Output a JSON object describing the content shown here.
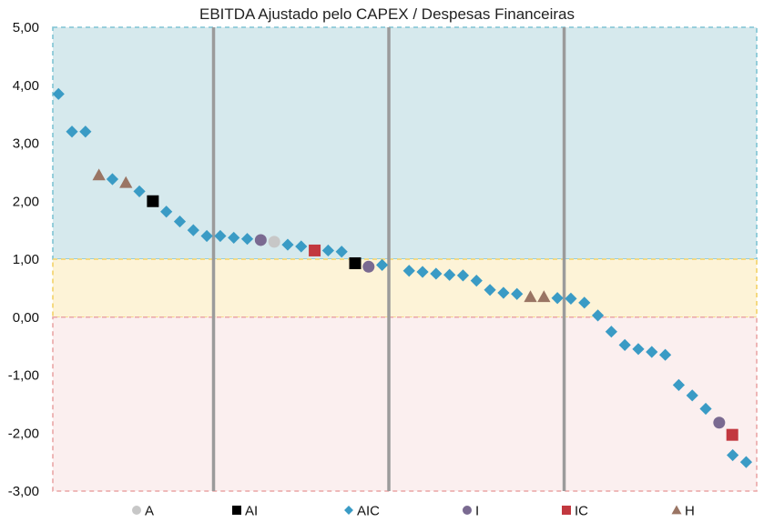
{
  "chart_data": {
    "type": "scatter",
    "title": "EBITDA Ajustado pelo CAPEX / Despesas Financeiras",
    "xlabel": "",
    "ylabel": "",
    "ylim": [
      -3,
      5
    ],
    "yticks": [
      "5,00",
      "4,00",
      "3,00",
      "2,00",
      "1,00",
      "0,00",
      "-1,00",
      "-2,00",
      "-3,00"
    ],
    "x_count": 52,
    "bands": [
      {
        "from": 1,
        "to": 5,
        "color": "#d6e9ed",
        "border": "#7ec4d4"
      },
      {
        "from": 0,
        "to": 1,
        "color": "#fdf3d7",
        "border": "#f3d267"
      },
      {
        "from": -3,
        "to": 0,
        "color": "#fbefef",
        "border": "#eaa6a6"
      }
    ],
    "vertical_lines_after_index": [
      12,
      25,
      38
    ],
    "legend": [
      {
        "name": "A",
        "marker": "circle",
        "color": "#c7c7c7"
      },
      {
        "name": "AI",
        "marker": "square",
        "color": "#000000"
      },
      {
        "name": "AIC",
        "marker": "diamond",
        "color": "#3a9bc5"
      },
      {
        "name": "I",
        "marker": "circle",
        "color": "#7a6a91"
      },
      {
        "name": "IC",
        "marker": "square",
        "color": "#c2383f"
      },
      {
        "name": "H",
        "marker": "triangle",
        "color": "#9a7564"
      }
    ],
    "series": [
      {
        "name": "AIC",
        "points": [
          [
            1,
            3.85
          ],
          [
            2,
            3.2
          ],
          [
            3,
            3.2
          ],
          [
            5,
            2.38
          ],
          [
            7,
            2.17
          ],
          [
            9,
            1.82
          ],
          [
            10,
            1.65
          ],
          [
            11,
            1.5
          ],
          [
            12,
            1.4
          ],
          [
            13,
            1.4
          ],
          [
            14,
            1.37
          ],
          [
            15,
            1.35
          ],
          [
            18,
            1.25
          ],
          [
            19,
            1.22
          ],
          [
            21,
            1.15
          ],
          [
            22,
            1.13
          ],
          [
            25,
            0.9
          ],
          [
            27,
            0.8
          ],
          [
            28,
            0.78
          ],
          [
            29,
            0.75
          ],
          [
            30,
            0.73
          ],
          [
            31,
            0.72
          ],
          [
            32,
            0.63
          ],
          [
            33,
            0.47
          ],
          [
            34,
            0.42
          ],
          [
            35,
            0.4
          ],
          [
            38,
            0.33
          ],
          [
            39,
            0.32
          ],
          [
            40,
            0.25
          ],
          [
            41,
            0.03
          ],
          [
            42,
            -0.25
          ],
          [
            43,
            -0.48
          ],
          [
            44,
            -0.55
          ],
          [
            45,
            -0.6
          ],
          [
            46,
            -0.65
          ],
          [
            47,
            -1.17
          ],
          [
            48,
            -1.35
          ],
          [
            49,
            -1.58
          ],
          [
            51,
            -2.38
          ],
          [
            52,
            -2.5
          ]
        ]
      },
      {
        "name": "A",
        "points": [
          [
            17,
            1.3
          ]
        ]
      },
      {
        "name": "AI",
        "points": [
          [
            8,
            2.0
          ],
          [
            23,
            0.93
          ]
        ]
      },
      {
        "name": "I",
        "points": [
          [
            16,
            1.33
          ],
          [
            24,
            0.87
          ],
          [
            50,
            -1.82
          ]
        ]
      },
      {
        "name": "IC",
        "points": [
          [
            20,
            1.15
          ],
          [
            50.97,
            -2.03
          ]
        ]
      },
      {
        "name": "H",
        "points": [
          [
            4,
            2.45
          ],
          [
            6,
            2.32
          ],
          [
            36,
            0.35
          ],
          [
            37,
            0.35
          ]
        ]
      }
    ]
  }
}
